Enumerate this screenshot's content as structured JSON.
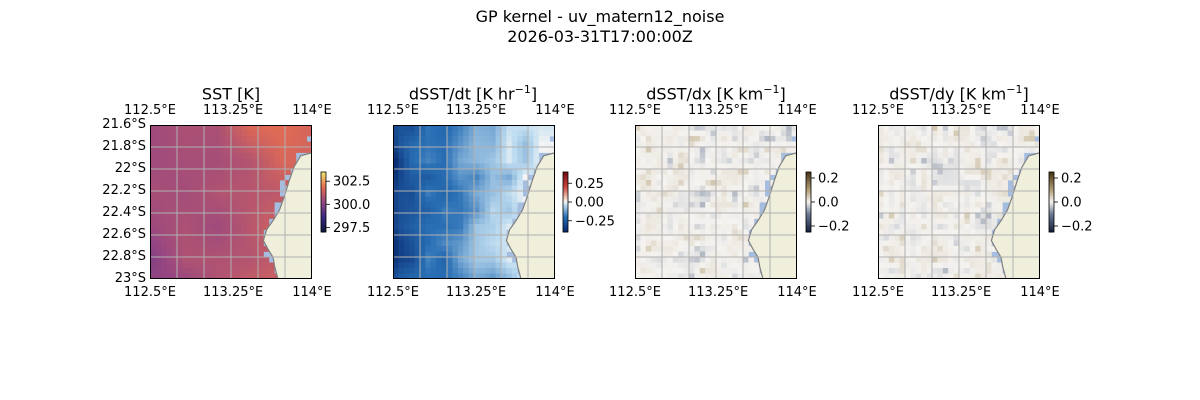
{
  "figure": {
    "title_line1": "GP kernel - uv_matern12_noise",
    "title_line2": "2026-03-31T17:00:00Z"
  },
  "colors": {
    "land": "#efefdb",
    "ocean": "#a5bddf",
    "coast": "#808080",
    "grid": "#b0b0b0"
  },
  "chart_data": [
    {
      "type": "heatmap",
      "title": "SST [K]",
      "title_main": "SST [K]",
      "title_sup": "",
      "title_tail": "",
      "colormap": "thermal",
      "lon_ticks": [
        "112.5°E",
        "113.25°E",
        "114°E"
      ],
      "lat_ticks": [
        "21.6°S",
        "21.8°S",
        "22°S",
        "22.2°S",
        "22.4°S",
        "22.6°S",
        "22.8°S",
        "23°S"
      ],
      "show_lat_ticks": true,
      "extent": {
        "lon": [
          112.5,
          114.0
        ],
        "lat": [
          -23.0,
          -21.6
        ]
      },
      "colorbar": {
        "range": [
          297.0,
          303.5
        ],
        "ticks": [
          302.5,
          300.0,
          297.5
        ],
        "tick_labels": [
          "302.5",
          "300.0",
          "297.5"
        ]
      },
      "field_range": [
        299.8,
        302.4
      ]
    },
    {
      "type": "heatmap",
      "title": "dSST/dt [K hr−1]",
      "title_main": "dSST/dt [K hr",
      "title_sup": "−1",
      "title_tail": "]",
      "colormap": "diverging-blue-red",
      "lon_ticks": [
        "112.5°E",
        "113.25°E",
        "114°E"
      ],
      "lat_ticks": [],
      "show_lat_ticks": false,
      "extent": {
        "lon": [
          112.5,
          114.0
        ],
        "lat": [
          -23.0,
          -21.6
        ]
      },
      "colorbar": {
        "range": [
          -0.4,
          0.4
        ],
        "ticks": [
          0.25,
          0.0,
          -0.25
        ],
        "tick_labels": [
          "0.25",
          "0.00",
          "−0.25"
        ]
      },
      "field_range": [
        -0.4,
        0.02
      ]
    },
    {
      "type": "heatmap",
      "title": "dSST/dx [K km−1]",
      "title_main": "dSST/dx [K km",
      "title_sup": "−1",
      "title_tail": "]",
      "colormap": "diverging-slate-tan",
      "lon_ticks": [
        "112.5°E",
        "113.25°E",
        "114°E"
      ],
      "lat_ticks": [],
      "show_lat_ticks": false,
      "extent": {
        "lon": [
          112.5,
          114.0
        ],
        "lat": [
          -23.0,
          -21.6
        ]
      },
      "colorbar": {
        "range": [
          -0.25,
          0.25
        ],
        "ticks": [
          0.2,
          0.0,
          -0.2
        ],
        "tick_labels": [
          "0.2",
          "0.0",
          "−0.2"
        ]
      },
      "field_range": [
        -0.06,
        0.06
      ]
    },
    {
      "type": "heatmap",
      "title": "dSST/dy [K km−1]",
      "title_main": "dSST/dy [K km",
      "title_sup": "−1",
      "title_tail": "]",
      "colormap": "diverging-slate-tan",
      "lon_ticks": [
        "112.5°E",
        "113.25°E",
        "114°E"
      ],
      "lat_ticks": [],
      "show_lat_ticks": false,
      "extent": {
        "lon": [
          112.5,
          114.0
        ],
        "lat": [
          -23.0,
          -21.6
        ]
      },
      "colorbar": {
        "range": [
          -0.25,
          0.25
        ],
        "ticks": [
          0.2,
          0.0,
          -0.2
        ],
        "tick_labels": [
          "0.2",
          "0.0",
          "−0.2"
        ]
      },
      "field_range": [
        -0.06,
        0.06
      ]
    }
  ]
}
